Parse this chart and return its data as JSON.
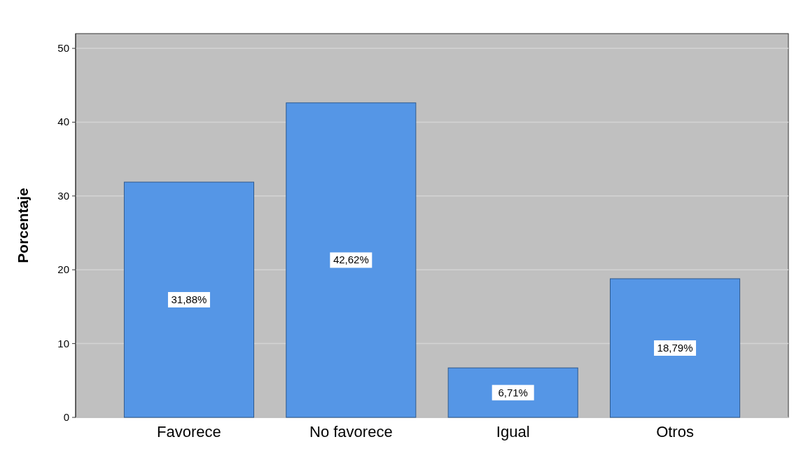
{
  "chart_data": {
    "type": "bar",
    "ylabel": "Porcentaje",
    "categories": [
      "Favorece",
      "No favorece",
      "Igual",
      "Otros"
    ],
    "values": [
      31.88,
      42.62,
      6.71,
      18.79
    ],
    "value_labels": [
      "31,88%",
      "42,62%",
      "6,71%",
      "18,79%"
    ],
    "color": "#5596e6",
    "ylim": [
      0,
      52
    ],
    "yticks": [
      0,
      10,
      20,
      30,
      40,
      50
    ],
    "grid": "y"
  }
}
